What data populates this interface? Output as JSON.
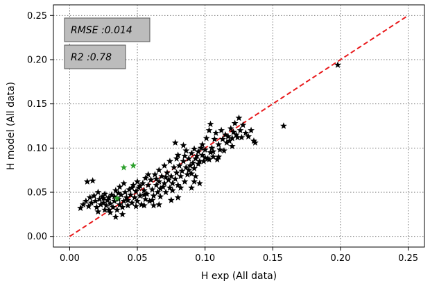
{
  "chart_data": {
    "type": "scatter",
    "xlabel": "H exp (All data)",
    "ylabel": "H model (All data)",
    "xlim": [
      -0.012,
      0.262
    ],
    "ylim": [
      -0.012,
      0.262
    ],
    "xticks": [
      0.0,
      0.05,
      0.1,
      0.15,
      0.2,
      0.25
    ],
    "xtick_labels": [
      "0.00",
      "0.05",
      "0.10",
      "0.15",
      "0.20",
      "0.25"
    ],
    "yticks": [
      0.0,
      0.05,
      0.1,
      0.15,
      0.2,
      0.25
    ],
    "ytick_labels": [
      "0.00",
      "0.05",
      "0.10",
      "0.15",
      "0.20",
      "0.25"
    ],
    "grid": true,
    "grid_style": "dotted",
    "annotations": [
      {
        "text": "RMSE :0.014"
      },
      {
        "text": "R2 :0.78"
      }
    ],
    "reference_line": {
      "x": [
        0.0,
        0.25
      ],
      "y": [
        0.0,
        0.25
      ],
      "color": "#e8191b",
      "style": "dashed"
    },
    "series": [
      {
        "marker": "star",
        "color": "#000000",
        "points": [
          [
            0.008,
            0.032
          ],
          [
            0.01,
            0.036
          ],
          [
            0.012,
            0.04
          ],
          [
            0.013,
            0.062
          ],
          [
            0.014,
            0.034
          ],
          [
            0.015,
            0.044
          ],
          [
            0.016,
            0.038
          ],
          [
            0.017,
            0.063
          ],
          [
            0.018,
            0.046
          ],
          [
            0.019,
            0.04
          ],
          [
            0.02,
            0.033
          ],
          [
            0.021,
            0.05
          ],
          [
            0.022,
            0.042
          ],
          [
            0.023,
            0.036
          ],
          [
            0.024,
            0.045
          ],
          [
            0.025,
            0.038
          ],
          [
            0.026,
            0.048
          ],
          [
            0.026,
            0.03
          ],
          [
            0.027,
            0.035
          ],
          [
            0.028,
            0.041
          ],
          [
            0.029,
            0.044
          ],
          [
            0.03,
            0.027
          ],
          [
            0.03,
            0.037
          ],
          [
            0.031,
            0.047
          ],
          [
            0.032,
            0.033
          ],
          [
            0.033,
            0.04
          ],
          [
            0.034,
            0.052
          ],
          [
            0.034,
            0.022
          ],
          [
            0.035,
            0.03
          ],
          [
            0.036,
            0.042
          ],
          [
            0.037,
            0.036
          ],
          [
            0.037,
            0.056
          ],
          [
            0.038,
            0.047
          ],
          [
            0.039,
            0.033
          ],
          [
            0.04,
            0.04
          ],
          [
            0.04,
            0.06
          ],
          [
            0.041,
            0.05
          ],
          [
            0.042,
            0.044
          ],
          [
            0.043,
            0.035
          ],
          [
            0.044,
            0.053
          ],
          [
            0.045,
            0.047
          ],
          [
            0.046,
            0.038
          ],
          [
            0.047,
            0.058
          ],
          [
            0.048,
            0.044
          ],
          [
            0.049,
            0.051
          ],
          [
            0.05,
            0.04
          ],
          [
            0.05,
            0.062
          ],
          [
            0.051,
            0.055
          ],
          [
            0.052,
            0.046
          ],
          [
            0.053,
            0.036
          ],
          [
            0.054,
            0.06
          ],
          [
            0.055,
            0.052
          ],
          [
            0.056,
            0.042
          ],
          [
            0.056,
            0.066
          ],
          [
            0.057,
            0.048
          ],
          [
            0.058,
            0.058
          ],
          [
            0.059,
            0.04
          ],
          [
            0.06,
            0.064
          ],
          [
            0.061,
            0.053
          ],
          [
            0.062,
            0.046
          ],
          [
            0.063,
            0.07
          ],
          [
            0.064,
            0.058
          ],
          [
            0.065,
            0.05
          ],
          [
            0.066,
            0.075
          ],
          [
            0.066,
            0.062
          ],
          [
            0.067,
            0.045
          ],
          [
            0.068,
            0.068
          ],
          [
            0.069,
            0.056
          ],
          [
            0.07,
            0.08
          ],
          [
            0.07,
            0.06
          ],
          [
            0.071,
            0.05
          ],
          [
            0.072,
            0.072
          ],
          [
            0.073,
            0.064
          ],
          [
            0.074,
            0.055
          ],
          [
            0.074,
            0.085
          ],
          [
            0.075,
            0.068
          ],
          [
            0.076,
            0.06
          ],
          [
            0.077,
            0.078
          ],
          [
            0.078,
            0.065
          ],
          [
            0.078,
            0.106
          ],
          [
            0.079,
            0.072
          ],
          [
            0.08,
            0.058
          ],
          [
            0.08,
            0.092
          ],
          [
            0.081,
            0.08
          ],
          [
            0.082,
            0.068
          ],
          [
            0.083,
            0.074
          ],
          [
            0.084,
            0.085
          ],
          [
            0.084,
            0.103
          ],
          [
            0.085,
            0.062
          ],
          [
            0.086,
            0.078
          ],
          [
            0.086,
            0.097
          ],
          [
            0.087,
            0.07
          ],
          [
            0.088,
            0.088
          ],
          [
            0.089,
            0.08
          ],
          [
            0.09,
            0.094
          ],
          [
            0.09,
            0.071
          ],
          [
            0.091,
            0.083
          ],
          [
            0.092,
            0.099
          ],
          [
            0.093,
            0.088
          ],
          [
            0.093,
            0.068
          ],
          [
            0.094,
            0.091
          ],
          [
            0.095,
            0.096
          ],
          [
            0.096,
            0.06
          ],
          [
            0.096,
            0.085
          ],
          [
            0.097,
            0.1
          ],
          [
            0.098,
            0.092
          ],
          [
            0.099,
            0.085
          ],
          [
            0.1,
            0.098
          ],
          [
            0.101,
            0.111
          ],
          [
            0.102,
            0.088
          ],
          [
            0.103,
            0.12
          ],
          [
            0.104,
            0.095
          ],
          [
            0.104,
            0.127
          ],
          [
            0.105,
            0.1
          ],
          [
            0.106,
            0.09
          ],
          [
            0.107,
            0.11
          ],
          [
            0.108,
            0.117
          ],
          [
            0.109,
            0.087
          ],
          [
            0.11,
            0.104
          ],
          [
            0.111,
            0.098
          ],
          [
            0.112,
            0.12
          ],
          [
            0.113,
            0.11
          ],
          [
            0.114,
            0.097
          ],
          [
            0.115,
            0.115
          ],
          [
            0.116,
            0.106
          ],
          [
            0.117,
            0.113
          ],
          [
            0.118,
            0.108
          ],
          [
            0.119,
            0.122
          ],
          [
            0.12,
            0.111
          ],
          [
            0.121,
            0.118
          ],
          [
            0.122,
            0.128
          ],
          [
            0.123,
            0.115
          ],
          [
            0.124,
            0.112
          ],
          [
            0.125,
            0.134
          ],
          [
            0.126,
            0.12
          ],
          [
            0.127,
            0.112
          ],
          [
            0.128,
            0.126
          ],
          [
            0.13,
            0.117
          ],
          [
            0.132,
            0.113
          ],
          [
            0.134,
            0.12
          ],
          [
            0.136,
            0.108
          ],
          [
            0.137,
            0.106
          ],
          [
            0.158,
            0.125
          ],
          [
            0.198,
            0.194
          ],
          [
            0.021,
            0.028
          ],
          [
            0.025,
            0.043
          ],
          [
            0.029,
            0.03
          ],
          [
            0.033,
            0.045
          ],
          [
            0.036,
            0.049
          ],
          [
            0.039,
            0.025
          ],
          [
            0.043,
            0.041
          ],
          [
            0.046,
            0.055
          ],
          [
            0.049,
            0.034
          ],
          [
            0.052,
            0.057
          ],
          [
            0.055,
            0.047
          ],
          [
            0.058,
            0.07
          ],
          [
            0.061,
            0.041
          ],
          [
            0.064,
            0.065
          ],
          [
            0.067,
            0.054
          ],
          [
            0.071,
            0.067
          ],
          [
            0.076,
            0.052
          ],
          [
            0.079,
            0.088
          ],
          [
            0.082,
            0.055
          ],
          [
            0.085,
            0.091
          ],
          [
            0.088,
            0.075
          ],
          [
            0.092,
            0.077
          ],
          [
            0.095,
            0.082
          ],
          [
            0.098,
            0.104
          ],
          [
            0.103,
            0.087
          ],
          [
            0.106,
            0.096
          ],
          [
            0.11,
            0.09
          ],
          [
            0.066,
            0.036
          ],
          [
            0.075,
            0.041
          ],
          [
            0.09,
            0.055
          ],
          [
            0.092,
            0.062
          ],
          [
            0.062,
            0.035
          ],
          [
            0.08,
            0.044
          ],
          [
            0.055,
            0.035
          ],
          [
            0.1,
            0.089
          ],
          [
            0.12,
            0.102
          ]
        ]
      },
      {
        "marker": "star",
        "color": "#2ca02c",
        "points": [
          [
            0.04,
            0.078
          ],
          [
            0.047,
            0.08
          ],
          [
            0.035,
            0.043
          ]
        ]
      }
    ]
  }
}
